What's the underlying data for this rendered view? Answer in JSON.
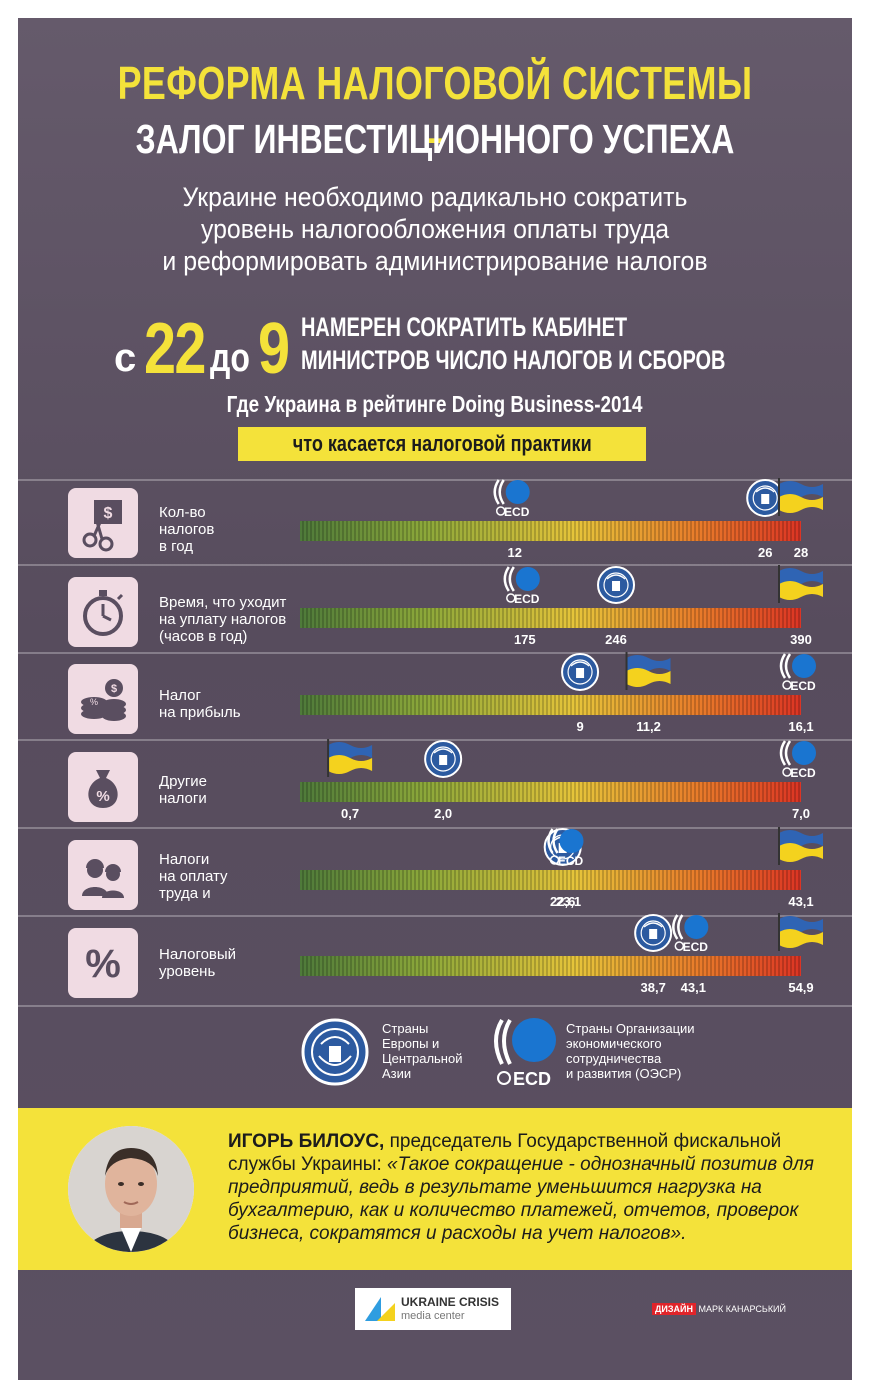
{
  "header": {
    "title_line1": "РЕФОРМА НАЛОГОВОЙ СИСТЕМЫ –",
    "title_line2": "ЗАЛОГ ИНВЕСТИЦИОННОГО УСПЕХА",
    "subtitle_lines": [
      "Украине необходимо радикально сократить",
      "уровень налогообложения оплаты труда",
      "и реформировать администрирование налогов"
    ]
  },
  "reduction": {
    "prefix": "с",
    "from": "22",
    "middle": "до",
    "to": "9",
    "text_line1": "НАМЕРЕН СОКРАТИТЬ КАБИНЕТ",
    "text_line2": "МИНИСТРОВ ЧИСЛО НАЛОГОВ И СБОРОВ"
  },
  "ranking": {
    "title": "Где Украина в рейтинге Doing Business-2014",
    "subtitle": "что касается налоговой практики"
  },
  "colors": {
    "accent_yellow": "#f4e23a",
    "background": "#5a4e60",
    "gradient_start": "#4e7a3a",
    "gradient_mid": "#e6c43a",
    "gradient_end": "#dc3424",
    "oecd_blue": "#1a75d0",
    "cis_blue": "#2c5aa0",
    "ukraine_blue": "#2f64b4",
    "ukraine_yellow": "#f4d21e"
  },
  "chart_data": {
    "type": "bar",
    "note_markers": [
      "oecd",
      "cis",
      "ukraine"
    ],
    "rows": [
      {
        "icon": "scissors-money-icon",
        "label_lines": [
          "Кол-во",
          "налогов",
          "в год"
        ],
        "markers": [
          {
            "group": "oecd",
            "value": 12,
            "label": "12"
          },
          {
            "group": "cis",
            "value": 26,
            "label": "26"
          },
          {
            "group": "ukraine",
            "value": 28,
            "label": "28"
          }
        ]
      },
      {
        "icon": "stopwatch-icon",
        "label_lines": [
          "Время, что уходит",
          "на уплату налогов",
          "(часов в год)"
        ],
        "markers": [
          {
            "group": "oecd",
            "value": 175,
            "label": "175"
          },
          {
            "group": "cis",
            "value": 246,
            "label": "246"
          },
          {
            "group": "ukraine",
            "value": 390,
            "label": "390"
          }
        ]
      },
      {
        "icon": "coins-icon",
        "label_lines": [
          "Налог",
          "на прибыль"
        ],
        "markers": [
          {
            "group": "cis",
            "value": 9,
            "label": "9"
          },
          {
            "group": "ukraine",
            "value": 11.2,
            "label": "11,2"
          },
          {
            "group": "oecd",
            "value": 16.1,
            "label": "16,1"
          }
        ]
      },
      {
        "icon": "money-bag-icon",
        "label_lines": [
          "Другие",
          "налоги"
        ],
        "markers": [
          {
            "group": "ukraine",
            "value": 0.7,
            "label": "0,7"
          },
          {
            "group": "cis",
            "value": 2.0,
            "label": "2,0"
          },
          {
            "group": "oecd",
            "value": 7.0,
            "label": "7,0"
          }
        ]
      },
      {
        "icon": "workers-icon",
        "label_lines": [
          "Налоги",
          "на оплату",
          "труда и"
        ],
        "markers": [
          {
            "group": "cis",
            "value": 22.6,
            "label": "22,6"
          },
          {
            "group": "oecd",
            "value": 23.1,
            "label": "23,1"
          },
          {
            "group": "ukraine",
            "value": 43.1,
            "label": "43,1"
          }
        ]
      },
      {
        "icon": "percent-icon",
        "label_lines": [
          "Налоговый",
          "уровень"
        ],
        "markers": [
          {
            "group": "cis",
            "value": 38.7,
            "label": "38,7"
          },
          {
            "group": "oecd",
            "value": 43.1,
            "label": "43,1"
          },
          {
            "group": "ukraine",
            "value": 54.9,
            "label": "54,9"
          }
        ]
      }
    ]
  },
  "legend": {
    "cis_lines": [
      "Страны",
      "Европы и",
      "Центральной",
      "Азии"
    ],
    "oecd_lines": [
      "Страны Организации",
      "экономического",
      "сотрудничества",
      "и развития (ОЭСР)"
    ],
    "oecd_logo_text": "ECD"
  },
  "quote": {
    "author": "ИГОРЬ БИЛОУС,",
    "position": " председатель Государственной фискальной службы Украины: ",
    "text": "«Такое сокращение - однозначный позитив для предприятий, ведь в результате уменьшится нагрузка на бухгалтерию, как и количество платежей, отчетов, проверок бизнеса, сократятся и расходы на учет налогов»."
  },
  "footer": {
    "logo_line1": "UKRAINE CRISIS",
    "logo_line2": "media center",
    "design_label": "ДИЗАЙН",
    "designer": "МАРК КАНАРСЬКИЙ"
  }
}
